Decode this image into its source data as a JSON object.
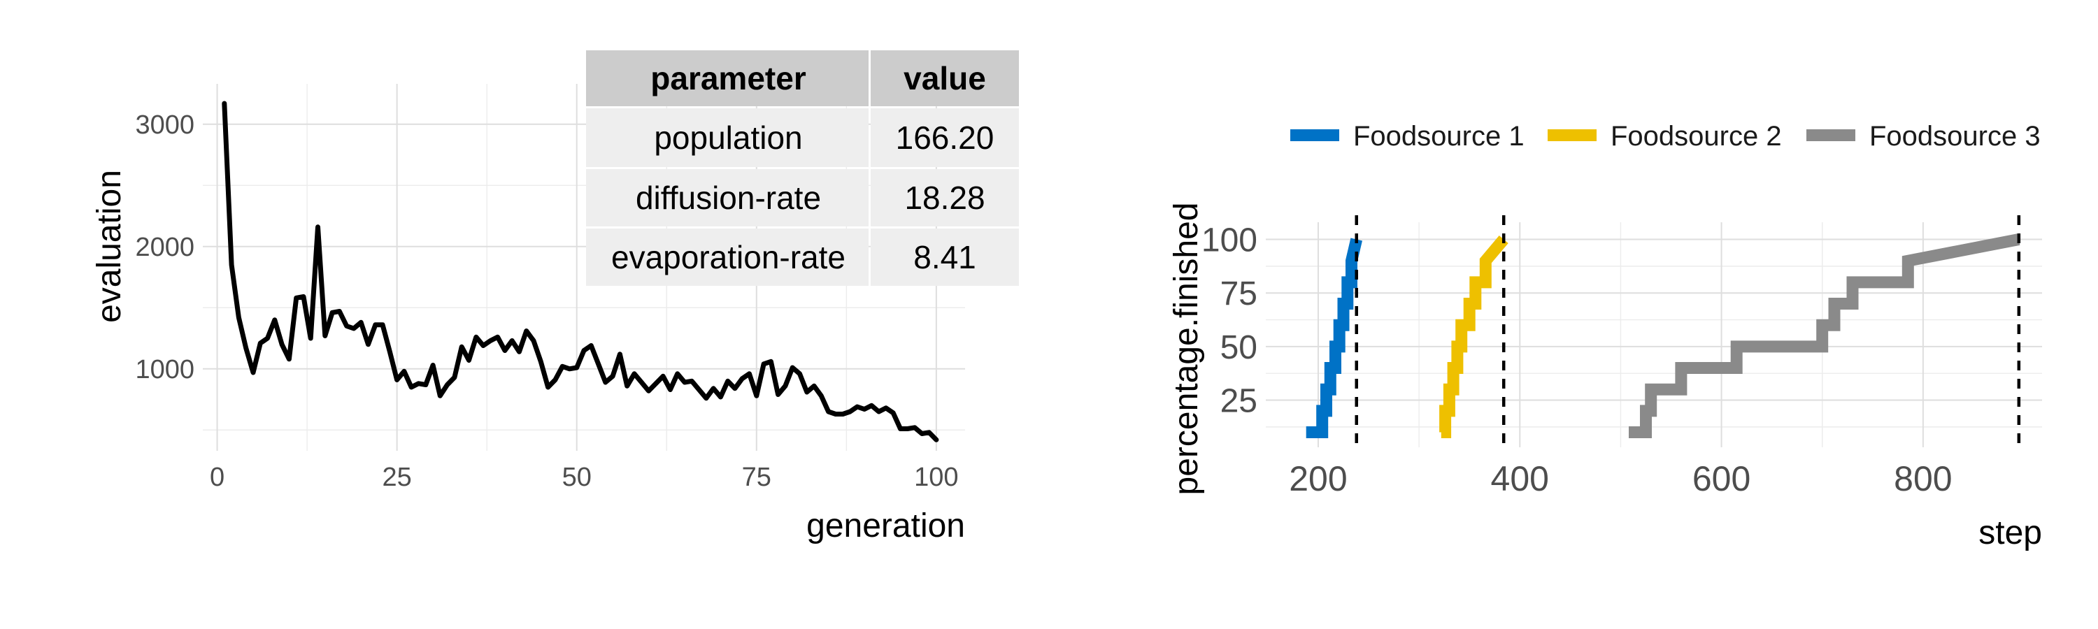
{
  "chart_data": [
    {
      "type": "line",
      "xlabel": "generation",
      "ylabel": "evaluation",
      "xlim": [
        -2,
        104
      ],
      "ylim": [
        330,
        3330
      ],
      "x_ticks": [
        "0",
        "25",
        "50",
        "75",
        "100"
      ],
      "y_ticks": [
        "1000",
        "2000",
        "3000"
      ],
      "grid": true,
      "color": "#000000",
      "series": [
        {
          "x": [
            1,
            2,
            3,
            4,
            5,
            6,
            7,
            8,
            9,
            10,
            11,
            12,
            13,
            14,
            15,
            16,
            17,
            18,
            19,
            20,
            21,
            22,
            23,
            24,
            25,
            26,
            27,
            28,
            29,
            30,
            31,
            32,
            33,
            34,
            35,
            36,
            37,
            38,
            39,
            40,
            41,
            42,
            43,
            44,
            45,
            46,
            47,
            48,
            49,
            50,
            51,
            52,
            53,
            54,
            55,
            56,
            57,
            58,
            59,
            60,
            61,
            62,
            63,
            64,
            65,
            66,
            67,
            68,
            69,
            70,
            71,
            72,
            73,
            74,
            75,
            76,
            77,
            78,
            79,
            80,
            81,
            82,
            83,
            84,
            85,
            86,
            87,
            88,
            89,
            90,
            91,
            92,
            93,
            94,
            95,
            96,
            97,
            98,
            99,
            100
          ],
          "y": [
            3170,
            1850,
            1420,
            1170,
            970,
            1210,
            1250,
            1400,
            1200,
            1080,
            1580,
            1590,
            1250,
            2160,
            1270,
            1460,
            1470,
            1350,
            1330,
            1380,
            1200,
            1360,
            1360,
            1140,
            910,
            980,
            850,
            880,
            870,
            1030,
            780,
            870,
            930,
            1180,
            1070,
            1260,
            1190,
            1230,
            1260,
            1150,
            1230,
            1140,
            1310,
            1230,
            1060,
            850,
            910,
            1020,
            1000,
            1010,
            1150,
            1190,
            1040,
            890,
            940,
            1120,
            860,
            960,
            890,
            820,
            880,
            940,
            830,
            960,
            890,
            900,
            830,
            760,
            840,
            770,
            900,
            840,
            920,
            960,
            780,
            1040,
            1060,
            790,
            860,
            1010,
            960,
            810,
            860,
            780,
            650,
            630,
            630,
            650,
            690,
            670,
            700,
            650,
            680,
            640,
            510,
            510,
            520,
            470,
            480,
            420
          ]
        }
      ],
      "table": {
        "headers": [
          "parameter",
          "value"
        ],
        "rows": [
          [
            "population",
            "166.20"
          ],
          [
            "diffusion-rate",
            "18.28"
          ],
          [
            "evaporation-rate",
            "8.41"
          ]
        ]
      }
    },
    {
      "type": "line",
      "xlabel": "step",
      "ylabel": "percentage.finished",
      "xlim": [
        148,
        918
      ],
      "ylim": [
        3,
        108
      ],
      "x_ticks": [
        "200",
        "400",
        "600",
        "800"
      ],
      "y_ticks": [
        "25",
        "50",
        "75",
        "100"
      ],
      "grid": true,
      "legend_position": "top",
      "vlines": [
        238,
        384,
        895
      ],
      "series": [
        {
          "name": "Foodsource 1",
          "color": "#0072c6",
          "x": [
            188,
            204,
            204,
            208,
            208,
            212,
            212,
            217,
            217,
            221,
            221,
            225,
            225,
            229,
            229,
            233,
            233,
            238
          ],
          "y": [
            10,
            10,
            20,
            20,
            30,
            30,
            40,
            40,
            50,
            50,
            60,
            60,
            70,
            70,
            80,
            80,
            90,
            100
          ]
        },
        {
          "name": "Foodsource 2",
          "color": "#eec000",
          "x": [
            322,
            326,
            326,
            330,
            330,
            334,
            334,
            338,
            338,
            342,
            342,
            350,
            350,
            356,
            356,
            366,
            366,
            384
          ],
          "y": [
            10,
            10,
            20,
            20,
            30,
            30,
            40,
            40,
            50,
            50,
            60,
            60,
            70,
            70,
            80,
            80,
            90,
            100
          ]
        },
        {
          "name": "Foodsource 3",
          "color": "#8a8a8a",
          "x": [
            508,
            525,
            525,
            530,
            530,
            560,
            560,
            615,
            615,
            700,
            700,
            712,
            712,
            730,
            730,
            785,
            785,
            895
          ],
          "y": [
            10,
            10,
            20,
            20,
            30,
            30,
            40,
            40,
            50,
            50,
            60,
            60,
            70,
            70,
            80,
            80,
            90,
            100
          ]
        }
      ]
    }
  ]
}
